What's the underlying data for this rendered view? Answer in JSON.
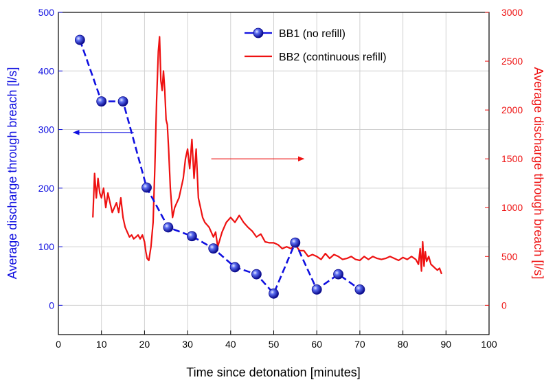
{
  "chart_data": {
    "type": "line",
    "title": "",
    "xlabel": "Time since detonation [minutes]",
    "ylabel_left": "Average discharge through breach [l/s]",
    "ylabel_right": "Average discharge through breach [l/s]",
    "xlim": [
      0,
      100
    ],
    "ylim_left": [
      -50,
      500
    ],
    "ylim_right": [
      -300,
      3000
    ],
    "x_ticks": [
      0,
      10,
      20,
      30,
      40,
      50,
      60,
      70,
      80,
      90,
      100
    ],
    "y_left_ticks": [
      0,
      100,
      200,
      300,
      400,
      500
    ],
    "y_right_ticks": [
      0,
      500,
      1000,
      1500,
      2000,
      2500,
      3000
    ],
    "grid": true,
    "legend_position": "top-center",
    "colors": {
      "bb1": "#1010e0",
      "bb2": "#ee1111",
      "grid": "#d0d0d0"
    },
    "series": [
      {
        "name": "BB1 (no refill)",
        "axis": "left",
        "style": "dash-with-sphere-markers",
        "x": [
          5,
          10,
          15,
          20.5,
          25.5,
          31,
          36,
          41,
          46,
          50,
          55,
          60,
          65,
          70
        ],
        "y": [
          453,
          348,
          348,
          201,
          133,
          118,
          97,
          65,
          53,
          20,
          107,
          27,
          53,
          27
        ]
      },
      {
        "name": "BB2 (continuous refill)",
        "axis": "right",
        "style": "solid",
        "x": [
          8,
          8.4,
          8.8,
          9.2,
          9.6,
          10,
          10.5,
          11,
          11.5,
          12,
          12.5,
          13,
          13.5,
          14,
          14.5,
          15,
          15.5,
          16,
          16.5,
          17,
          17.5,
          18,
          18.5,
          19,
          19.5,
          20,
          20.3,
          20.6,
          21,
          21.5,
          22,
          22.4,
          22.8,
          23.2,
          23.5,
          23.8,
          24.1,
          24.4,
          24.7,
          25,
          25.3,
          25.6,
          26,
          26.5,
          27,
          27.5,
          28,
          28.5,
          29,
          29.5,
          30,
          30.5,
          31,
          31.5,
          32,
          32.5,
          33,
          33.5,
          34,
          35,
          36,
          36.5,
          37,
          38,
          39,
          40,
          41,
          42,
          43,
          44,
          45,
          46,
          47,
          48,
          49,
          50,
          51,
          52,
          53,
          54,
          55,
          56,
          57,
          58,
          59,
          60,
          61,
          62,
          63,
          64,
          65,
          66,
          67,
          68,
          69,
          70,
          71,
          72,
          73,
          74,
          75,
          76,
          77,
          78,
          79,
          80,
          81,
          82,
          83,
          83.6,
          84,
          84.3,
          84.6,
          84.9,
          85.2,
          85.5,
          86,
          86.5,
          87,
          87.5,
          88,
          88.5,
          89
        ],
        "y": [
          900,
          1350,
          1100,
          1300,
          1150,
          1100,
          1200,
          1000,
          1150,
          1050,
          950,
          1000,
          1050,
          950,
          1100,
          900,
          800,
          750,
          700,
          720,
          680,
          700,
          720,
          680,
          720,
          650,
          550,
          480,
          460,
          600,
          850,
          1400,
          2100,
          2600,
          2750,
          2300,
          2200,
          2400,
          2200,
          1900,
          1850,
          1600,
          1200,
          900,
          1000,
          1050,
          1100,
          1200,
          1300,
          1500,
          1600,
          1400,
          1700,
          1300,
          1600,
          1100,
          1000,
          900,
          850,
          800,
          700,
          750,
          600,
          750,
          850,
          900,
          850,
          920,
          850,
          800,
          760,
          700,
          730,
          650,
          640,
          640,
          620,
          580,
          600,
          580,
          620,
          560,
          560,
          500,
          520,
          500,
          470,
          530,
          480,
          520,
          500,
          470,
          480,
          500,
          470,
          460,
          500,
          470,
          500,
          480,
          470,
          480,
          500,
          480,
          460,
          490,
          470,
          500,
          470,
          420,
          580,
          350,
          650,
          400,
          550,
          450,
          500,
          420,
          400,
          380,
          360,
          380,
          320
        ]
      }
    ],
    "annotations": [
      {
        "kind": "arrow",
        "color": "#1010e0",
        "from_x": 17.5,
        "from_y": 295,
        "to_x": 3.5,
        "to_y": 295,
        "axis": "left"
      },
      {
        "kind": "arrow",
        "color": "#ee1111",
        "from_x": 35.5,
        "from_y": 1500,
        "to_x": 57,
        "to_y": 1500,
        "axis": "right"
      }
    ]
  }
}
